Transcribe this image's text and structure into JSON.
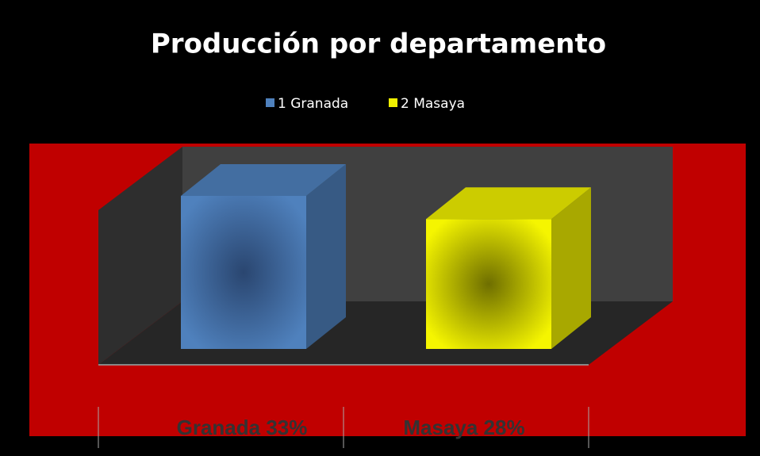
{
  "chart_data": {
    "type": "bar3d",
    "title": "Producción por departamento",
    "legend": [
      "1 Granada",
      "2 Masaya"
    ],
    "categories": [
      "Granada 33%",
      "Masaya 28%"
    ],
    "values": [
      33,
      28
    ],
    "colors": [
      "#4f81bd",
      "#f0f000"
    ]
  }
}
